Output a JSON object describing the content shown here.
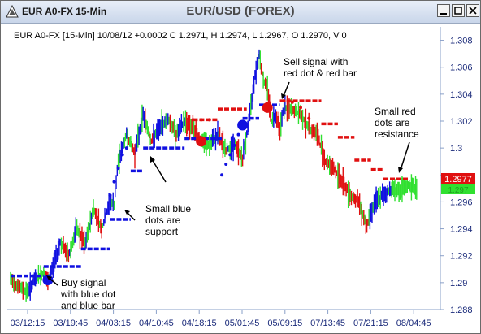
{
  "window": {
    "title": "EUR A0-FX 15-Min",
    "center_title": "EUR/USD (FOREX)"
  },
  "chart_header": "EUR A0-FX [15-Min] 10/08/12 +0.0002 C 1.2971, H 1.2974, L 1.2967, O 1.2970, V 0",
  "colors": {
    "up_bar": "#1010e0",
    "down_bar": "#e01010",
    "neutral_bar": "#30e030",
    "support_dot": "#1010e0",
    "resistance_dot": "#e01010",
    "price_label_bg": "#e01010",
    "green_label_bg": "#30e030"
  },
  "price_labels": {
    "last": "1.2977",
    "hidden": "1.297"
  },
  "annotations": [
    {
      "id": "buy",
      "text": [
        "Buy signal",
        "with blue dot",
        "and blue bar"
      ]
    },
    {
      "id": "support",
      "text": [
        "Small blue",
        "dots are",
        "support"
      ]
    },
    {
      "id": "sell",
      "text": [
        "Sell signal with",
        "red dot & red bar"
      ]
    },
    {
      "id": "resistance",
      "text": [
        "Small red",
        "dots are",
        "resistance"
      ]
    }
  ],
  "chart_data": {
    "type": "bar",
    "title": "EUR A0-FX [15-Min] 10/08/12 +0.0002 C 1.2971, H 1.2974, L 1.2967, O 1.2970, V 0",
    "x_tick_labels": [
      "03/12:15",
      "03/19:45",
      "04/03:15",
      "04/10:45",
      "04/18:15",
      "05/01:45",
      "05/09:15",
      "07/13:45",
      "07/21:15",
      "08/04:45"
    ],
    "y_ticks": [
      1.288,
      1.29,
      1.292,
      1.294,
      1.296,
      1.298,
      1.3,
      1.302,
      1.304,
      1.306,
      1.308
    ],
    "y_tick_labels": [
      "1.288",
      "1.29",
      "1.292",
      "1.294",
      "1.296",
      "",
      "1.3",
      "1.302",
      "1.304",
      "1.306",
      "1.308"
    ],
    "ylim": [
      1.288,
      1.309
    ],
    "grid": false,
    "x_range": [
      0,
      100
    ],
    "price_path": [
      [
        0,
        1.2902
      ],
      [
        2,
        1.2897
      ],
      [
        4,
        1.2893
      ],
      [
        6,
        1.2903
      ],
      [
        8,
        1.2907
      ],
      [
        9,
        1.29
      ],
      [
        10,
        1.291
      ],
      [
        12,
        1.293
      ],
      [
        14,
        1.292
      ],
      [
        16,
        1.294
      ],
      [
        18,
        1.2928
      ],
      [
        20,
        1.2955
      ],
      [
        22,
        1.294
      ],
      [
        24,
        1.296
      ],
      [
        25,
        1.2958
      ],
      [
        26,
        1.299
      ],
      [
        28,
        1.301
      ],
      [
        30,
        1.2996
      ],
      [
        32,
        1.3025
      ],
      [
        34,
        1.3005
      ],
      [
        36,
        1.3015
      ],
      [
        38,
        1.3022
      ],
      [
        40,
        1.301
      ],
      [
        42,
        1.302
      ],
      [
        44,
        1.3015
      ],
      [
        46,
        1.3005
      ],
      [
        48,
        1.3002
      ],
      [
        50,
        1.301
      ],
      [
        52,
        1.2998
      ],
      [
        54,
        1.3003
      ],
      [
        56,
        1.2992
      ],
      [
        57,
        1.301
      ],
      [
        58,
        1.303
      ],
      [
        59,
        1.3055
      ],
      [
        60,
        1.307
      ],
      [
        61,
        1.305
      ],
      [
        62,
        1.3045
      ],
      [
        63,
        1.302
      ],
      [
        64,
        1.3025
      ],
      [
        65,
        1.3015
      ],
      [
        66,
        1.303
      ],
      [
        68,
        1.3028
      ],
      [
        70,
        1.3025
      ],
      [
        72,
        1.3015
      ],
      [
        74,
        1.301
      ],
      [
        76,
        1.299
      ],
      [
        78,
        1.2985
      ],
      [
        80,
        1.2975
      ],
      [
        82,
        1.2965
      ],
      [
        84,
        1.296
      ],
      [
        86,
        1.2942
      ],
      [
        87,
        1.2953
      ],
      [
        88,
        1.296
      ],
      [
        90,
        1.2965
      ],
      [
        92,
        1.297
      ],
      [
        94,
        1.2968
      ],
      [
        96,
        1.2972
      ],
      [
        98,
        1.297
      ]
    ],
    "support_steps": [
      {
        "x": [
          0,
          8
        ],
        "y": 1.2905
      },
      {
        "x": [
          8,
          17
        ],
        "y": 1.2912
      },
      {
        "x": [
          17,
          24
        ],
        "y": 1.2925
      },
      {
        "x": [
          24,
          29
        ],
        "y": 1.2947
      },
      {
        "x": [
          29,
          32
        ],
        "y": 1.2983
      },
      {
        "x": [
          32,
          42
        ],
        "y": 1.3
      },
      {
        "x": [
          42,
          51
        ],
        "y": 1.3007
      },
      {
        "x": [
          56,
          60
        ],
        "y": 1.3022
      },
      {
        "x": [
          60,
          65
        ],
        "y": 1.3032
      }
    ],
    "resistance_steps": [
      {
        "x": [
          44,
          50
        ],
        "y": 1.3021
      },
      {
        "x": [
          50,
          57
        ],
        "y": 1.3029
      },
      {
        "x": [
          65,
          75
        ],
        "y": 1.3035
      },
      {
        "x": [
          75,
          79
        ],
        "y": 1.3018
      },
      {
        "x": [
          79,
          83
        ],
        "y": 1.3008
      },
      {
        "x": [
          83,
          87
        ],
        "y": 1.2991
      },
      {
        "x": [
          87,
          90
        ],
        "y": 1.2984
      },
      {
        "x": [
          90,
          96
        ],
        "y": 1.2977
      }
    ],
    "support_dots_trail": [
      [
        24,
        1.2965
      ],
      [
        25,
        1.2975
      ],
      [
        26,
        1.2985
      ],
      [
        27,
        1.2995
      ],
      [
        28,
        1.3
      ],
      [
        51,
        1.298
      ],
      [
        52,
        1.2988
      ],
      [
        53,
        1.2995
      ],
      [
        54,
        1.3002
      ],
      [
        55,
        1.301
      ]
    ],
    "resistance_dots_trail": [
      [
        44,
        1.3021
      ],
      [
        46,
        1.3021
      ],
      [
        48,
        1.3021
      ],
      [
        66,
        1.3035
      ],
      [
        68,
        1.3034
      ],
      [
        70,
        1.303
      ],
      [
        72,
        1.3022
      ]
    ],
    "signals": [
      {
        "type": "buy",
        "x": 9,
        "y": 1.2902
      },
      {
        "type": "buy",
        "x": 56,
        "y": 1.3017
      },
      {
        "type": "sell",
        "x": 46,
        "y": 1.3005
      },
      {
        "type": "sell",
        "x": 62,
        "y": 1.303
      }
    ]
  }
}
